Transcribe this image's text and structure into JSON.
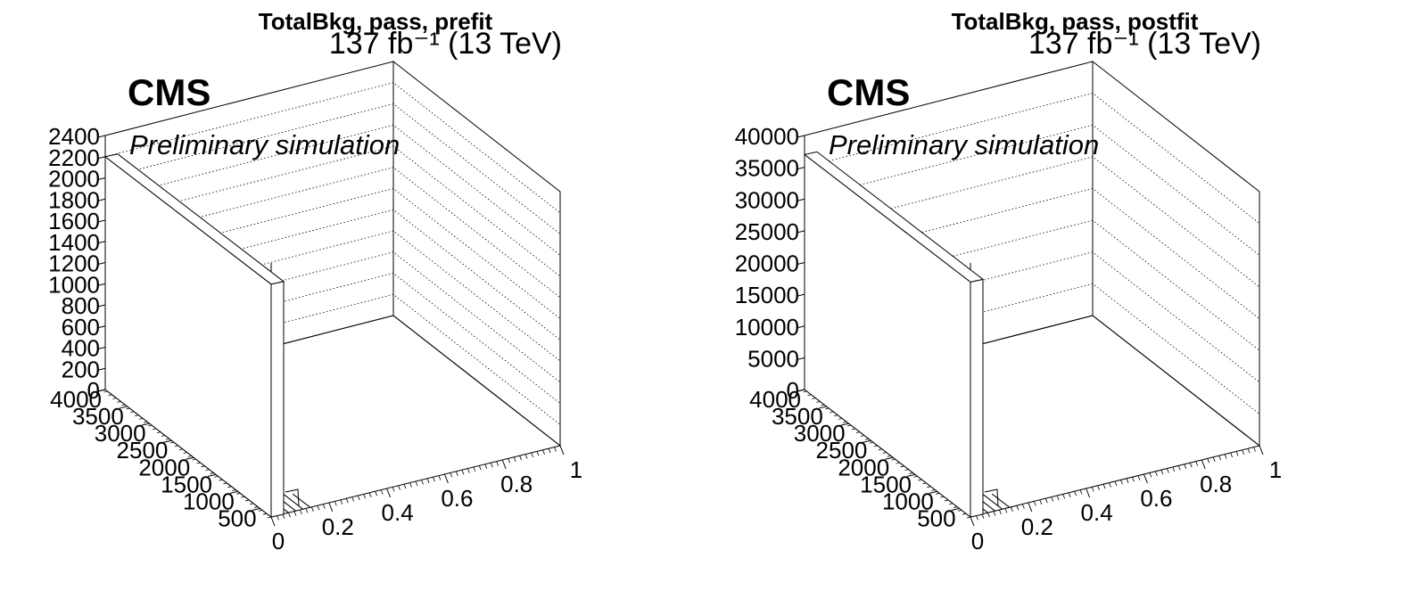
{
  "chart_data": [
    {
      "type": "lego",
      "title": "TotalBkg, pass, prefit",
      "lumi_label": "137 fb⁻¹ (13 TeV)",
      "cms_label": "CMS",
      "extra_label": "Preliminary simulation",
      "x_ticks": [
        "0",
        "0.2",
        "0.4",
        "0.6",
        "0.8",
        "1"
      ],
      "y_ticks": [
        "500",
        "1000",
        "1500",
        "2000",
        "2500",
        "3000",
        "3500",
        "4000"
      ],
      "z_ticks": [
        "0",
        "200",
        "400",
        "600",
        "800",
        "1000",
        "1200",
        "1400",
        "1600",
        "1800",
        "2000",
        "2200",
        "2400"
      ],
      "xlim": [
        0,
        1
      ],
      "ylim": [
        250,
        4000
      ],
      "zlim": [
        0,
        2400
      ],
      "bin_value": 2200
    },
    {
      "type": "lego",
      "title": "TotalBkg, pass, postfit",
      "lumi_label": "137 fb⁻¹ (13 TeV)",
      "cms_label": "CMS",
      "extra_label": "Preliminary simulation",
      "x_ticks": [
        "0",
        "0.2",
        "0.4",
        "0.6",
        "0.8",
        "1"
      ],
      "y_ticks": [
        "500",
        "1000",
        "1500",
        "2000",
        "2500",
        "3000",
        "3500",
        "4000"
      ],
      "z_ticks": [
        "0",
        "5000",
        "10000",
        "15000",
        "20000",
        "25000",
        "30000",
        "35000",
        "40000"
      ],
      "xlim": [
        0,
        1
      ],
      "ylim": [
        250,
        4000
      ],
      "zlim": [
        0,
        40000
      ],
      "bin_value": 37000
    }
  ]
}
